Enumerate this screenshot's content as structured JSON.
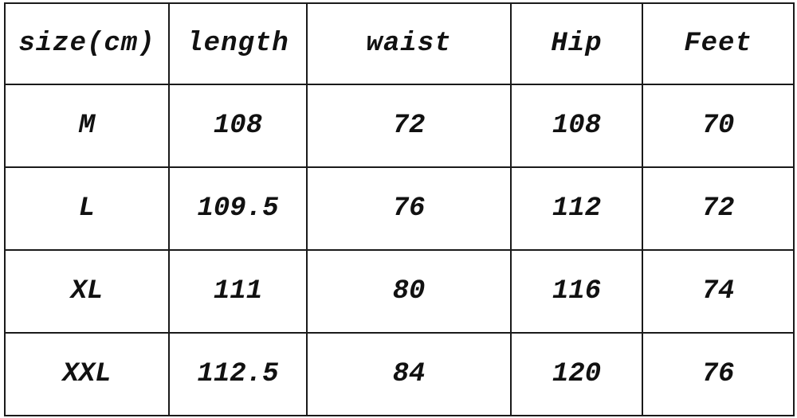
{
  "table": {
    "headers": [
      "size(cm)",
      "length",
      "waist",
      "Hip",
      "Feet"
    ],
    "rows": [
      [
        "M",
        "108",
        "72",
        "108",
        "70"
      ],
      [
        "L",
        "109.5",
        "76",
        "112",
        "72"
      ],
      [
        "XL",
        "111",
        "80",
        "116",
        "74"
      ],
      [
        "XXL",
        "112.5",
        "84",
        "120",
        "76"
      ]
    ]
  }
}
